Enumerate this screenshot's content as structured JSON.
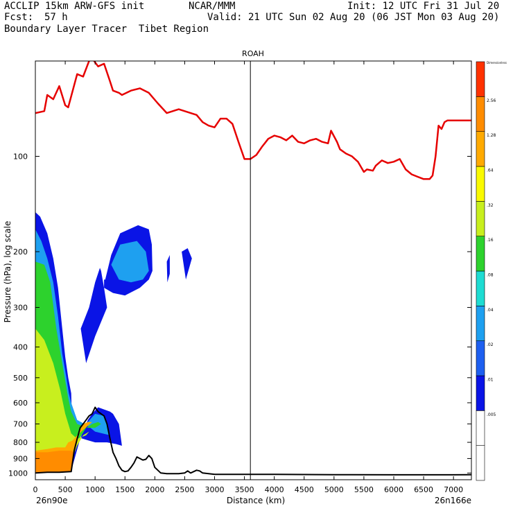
{
  "header": {
    "model": "ACCLIP 15km ARW-GFS init",
    "org": "NCAR/MMM",
    "init": "Init: 12 UTC Fri 31 Jul 20",
    "fcst_label": "Fcst:",
    "fcst_value": "57 h",
    "valid": "Valid: 21 UTC Sun 02 Aug 20 (06 JST Mon 03 Aug 20)",
    "product": "Boundary Layer Tracer  Tibet Region"
  },
  "chart_data": {
    "type": "heatmap",
    "title": "ROAH",
    "xlabel": "Distance (km)",
    "ylabel": "Pressure (hPa), log scale",
    "x_start_label": "26n90e",
    "x_end_label": "26n166e",
    "xlim": [
      0,
      7300
    ],
    "ylim_hpa": [
      1050,
      50
    ],
    "x_ticks": [
      0,
      500,
      1000,
      1500,
      2000,
      2500,
      3000,
      3500,
      4000,
      4500,
      5000,
      5500,
      6000,
      6500,
      7000
    ],
    "y_ticks": [
      100,
      200,
      300,
      400,
      500,
      600,
      700,
      800,
      900,
      1000
    ],
    "vertical_line_km": 3600,
    "colorbar": {
      "levels": [
        "",
        ".005",
        ".01",
        ".02",
        ".04",
        ".08",
        ".16",
        ".32",
        ".64",
        "1.28",
        "2.56",
        "Dimensionless"
      ],
      "colors": [
        "#ffffff",
        "#ffffff",
        "#0a14e6",
        "#1e5ff0",
        "#1ea0f0",
        "#1edcd2",
        "#2dd22d",
        "#c8ef1e",
        "#fafa00",
        "#ffaa00",
        "#ff8c00",
        "#ff3200"
      ]
    },
    "series": [
      {
        "name": "tropopause",
        "color": "#e60000",
        "x": [
          0,
          150,
          200,
          300,
          400,
          500,
          550,
          700,
          800,
          900,
          950,
          1050,
          1150,
          1250,
          1300,
          1400,
          1450,
          1600,
          1750,
          1900,
          2050,
          2200,
          2300,
          2400,
          2500,
          2600,
          2700,
          2800,
          2900,
          3000,
          3100,
          3200,
          3300,
          3400,
          3500,
          3600,
          3700,
          3800,
          3900,
          4000,
          4100,
          4200,
          4300,
          4400,
          4500,
          4600,
          4700,
          4800,
          4900,
          4950,
          5050,
          5100,
          5200,
          5300,
          5400,
          5500,
          5550,
          5650,
          5700,
          5800,
          5900,
          6000,
          6100,
          6200,
          6300,
          6400,
          6500,
          6600,
          6650,
          6700,
          6750,
          6800,
          6850,
          6900,
          7000,
          7100,
          7300
        ],
        "y": [
          73,
          72,
          64,
          66,
          60,
          69,
          70,
          55,
          56,
          50,
          49,
          52,
          51,
          58,
          62,
          63,
          64,
          62,
          61,
          63,
          68,
          73,
          72,
          71,
          72,
          73,
          74,
          78,
          80,
          81,
          76,
          76,
          79,
          90,
          102,
          102,
          99,
          93,
          88,
          86,
          87,
          89,
          86,
          90,
          91,
          89,
          88,
          90,
          91,
          83,
          90,
          95,
          98,
          100,
          104,
          112,
          110,
          111,
          107,
          103,
          105,
          104,
          102,
          110,
          114,
          116,
          118,
          118,
          115,
          100,
          80,
          82,
          78,
          77,
          77,
          77,
          77
        ]
      },
      {
        "name": "terrain",
        "color": "#000000",
        "x": [
          0,
          200,
          400,
          600,
          650,
          700,
          750,
          800,
          850,
          900,
          950,
          1000,
          1050,
          1100,
          1150,
          1200,
          1250,
          1300,
          1350,
          1400,
          1450,
          1500,
          1550,
          1600,
          1650,
          1700,
          1750,
          1800,
          1850,
          1900,
          1950,
          2000,
          2100,
          2200,
          2300,
          2400,
          2500,
          2550,
          2600,
          2650,
          2700,
          2750,
          2800,
          2900,
          3000,
          3500,
          4000,
          5000,
          6000,
          7000,
          7300
        ],
        "y": [
          1000,
          995,
          995,
          990,
          850,
          780,
          720,
          700,
          680,
          660,
          650,
          620,
          640,
          650,
          660,
          700,
          780,
          860,
          900,
          950,
          980,
          990,
          985,
          960,
          930,
          890,
          900,
          910,
          905,
          880,
          900,
          960,
          1000,
          1005,
          1005,
          1005,
          1000,
          985,
          1000,
          990,
          980,
          985,
          1000,
          1005,
          1010,
          1010,
          1010,
          1012,
          1013,
          1013,
          1012
        ]
      }
    ],
    "contour_regions": [
      {
        "level": ".01",
        "color": "#0a14e6",
        "polys": [
          {
            "x": [
              0,
              100,
              250,
              350,
              450,
              500,
              600,
              750,
              880,
              950,
              1050,
              1250,
              1300,
              1400,
              1450,
              1350,
              1200,
              1000,
              900,
              800,
              700,
              620,
              600,
              550,
              500,
              450,
              380,
              300,
              200,
              80,
              0
            ],
            "y": [
              1000,
              998,
              995,
              995,
              993,
              990,
              985,
              780,
              680,
              650,
              620,
              640,
              650,
              700,
              820,
              810,
              800,
              800,
              790,
              780,
              770,
              750,
              560,
              500,
              430,
              350,
              260,
              210,
              175,
              155,
              150
            ]
          },
          {
            "x": [
              1170,
              1270,
              1420,
              1720,
              1900,
              1950,
              1960,
              1900,
              1750,
              1500,
              1300,
              1150,
              1150
            ],
            "y": [
              245,
              205,
              175,
              165,
              170,
              190,
              230,
              245,
              260,
              275,
              270,
              260,
              245
            ]
          },
          {
            "x": [
              760,
              900,
              1000,
              1080,
              1100,
              1150,
              1200,
              1000,
              850,
              760
            ],
            "y": [
              350,
              300,
              250,
              225,
              230,
              260,
              300,
              370,
              450,
              350
            ]
          },
          {
            "x": [
              2200,
              2250,
              2250,
              2210,
              2200
            ],
            "y": [
              215,
              205,
              235,
              250,
              215
            ]
          },
          {
            "x": [
              2450,
              2550,
              2620,
              2520,
              2450
            ],
            "y": [
              200,
              195,
              210,
              245,
              200
            ]
          }
        ]
      },
      {
        "level": ".04",
        "color": "#1ea0f0",
        "polys": [
          {
            "x": [
              0,
              100,
              220,
              350,
              480,
              600,
              700,
              880,
              1000,
              1150,
              1250,
              1000,
              880,
              700,
              600,
              560,
              520,
              450,
              380,
              300,
              200,
              100,
              0
            ],
            "y": [
              1000,
              995,
              990,
              990,
              985,
              940,
              780,
              690,
              650,
              660,
              760,
              740,
              710,
              680,
              600,
              560,
              500,
              420,
              320,
              250,
              210,
              185,
              170
            ]
          },
          {
            "x": [
              1270,
              1420,
              1700,
              1850,
              1900,
              1800,
              1600,
              1400,
              1270
            ],
            "y": [
              220,
              190,
              185,
              200,
              230,
              245,
              250,
              245,
              220
            ]
          }
        ]
      },
      {
        "level": ".16",
        "color": "#2dd22d",
        "polys": [
          {
            "x": [
              0,
              150,
              300,
              450,
              600,
              700,
              850,
              950,
              1050,
              1100,
              1000,
              880,
              700,
              600,
              550,
              450,
              350,
              250,
              150,
              0
            ],
            "y": [
              1000,
              985,
              975,
              970,
              930,
              800,
              720,
              700,
              690,
              700,
              720,
              720,
              700,
              640,
              580,
              450,
              350,
              250,
              220,
              215
            ]
          }
        ]
      },
      {
        "level": ".32",
        "color": "#c8ef1e",
        "polys": [
          {
            "x": [
              0,
              150,
              350,
              500,
              620,
              700,
              800,
              900,
              850,
              700,
              600,
              500,
              420,
              300,
              150,
              0
            ],
            "y": [
              1000,
              960,
              950,
              940,
              900,
              820,
              760,
              740,
              760,
              780,
              750,
              650,
              550,
              450,
              380,
              350
            ]
          }
        ]
      },
      {
        "level": "1.28",
        "color": "#ffaa00",
        "polys": [
          {
            "x": [
              0,
              150,
              300,
              450,
              600,
              650,
              700,
              750,
              800,
              880,
              950,
              700,
              620,
              550,
              500,
              350,
              200,
              0
            ],
            "y": [
              1000,
              995,
              995,
              992,
              985,
              850,
              780,
              730,
              700,
              690,
              690,
              760,
              790,
              800,
              830,
              830,
              840,
              850
            ]
          }
        ]
      },
      {
        "level": "2.56",
        "color": "#ff8c00",
        "polys": [
          {
            "x": [
              0,
              200,
              400,
              600,
              650,
              650,
              600,
              400,
              200,
              0
            ],
            "y": [
              1000,
              995,
              995,
              990,
              870,
              860,
              850,
              850,
              860,
              860
            ]
          }
        ]
      }
    ]
  }
}
